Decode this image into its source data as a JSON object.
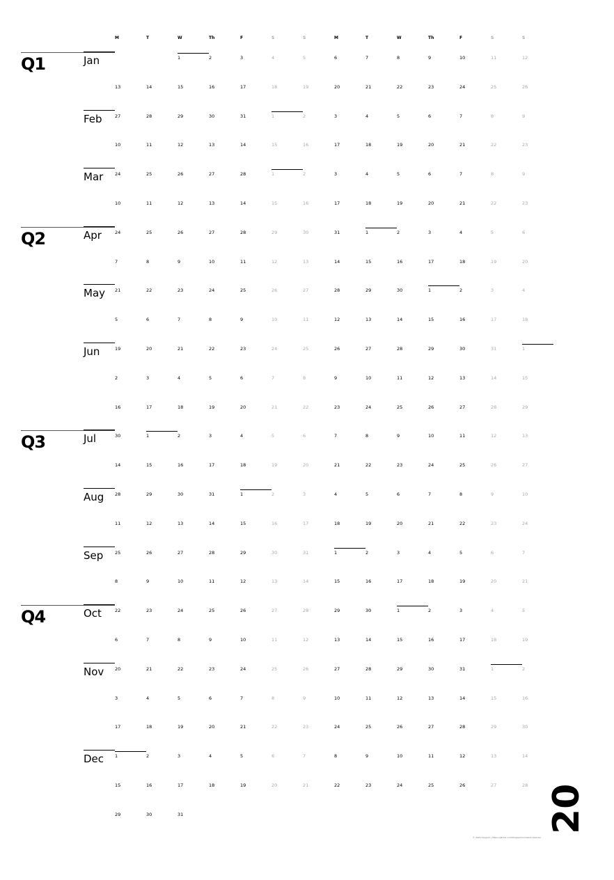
{
  "calendar": {
    "year_label": "20",
    "weekday_headers": [
      "M",
      "T",
      "W",
      "Th",
      "F",
      "S",
      "S",
      "M",
      "T",
      "W",
      "Th",
      "F",
      "S",
      "S"
    ],
    "start_weekday": 2,
    "month_lengths": [
      31,
      28,
      31,
      30,
      31,
      30,
      31,
      31,
      30,
      31,
      30,
      31
    ],
    "months": [
      {
        "label": "Jan",
        "quarter": "Q1"
      },
      {
        "label": "Feb",
        "quarter": ""
      },
      {
        "label": "Mar",
        "quarter": ""
      },
      {
        "label": "Apr",
        "quarter": "Q2"
      },
      {
        "label": "May",
        "quarter": ""
      },
      {
        "label": "Jun",
        "quarter": ""
      },
      {
        "label": "Jul",
        "quarter": "Q3"
      },
      {
        "label": "Aug",
        "quarter": ""
      },
      {
        "label": "Sep",
        "quarter": ""
      },
      {
        "label": "Oct",
        "quarter": "Q4"
      },
      {
        "label": "Nov",
        "quarter": ""
      },
      {
        "label": "Dec",
        "quarter": ""
      }
    ],
    "credit": "© 2020 thoppe2 | https://github.com/thoppe/minimalist-calendar",
    "colors": {
      "weekday_text": "#000000",
      "weekend_text": "#a8a8a8"
    }
  }
}
